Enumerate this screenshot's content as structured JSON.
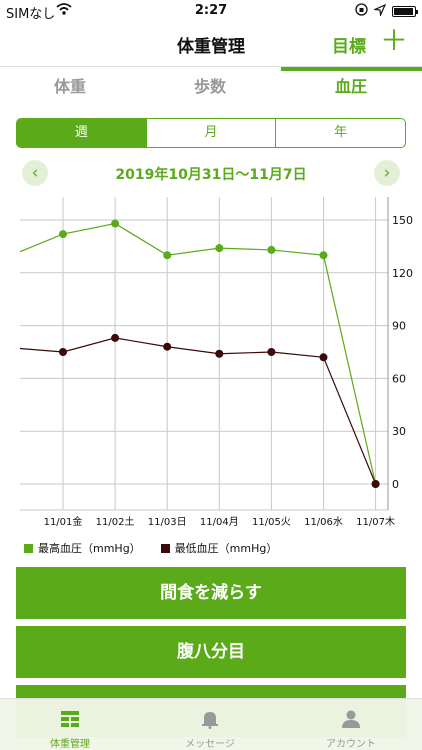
{
  "status": {
    "carrier": "SIMなし",
    "time": "2:27"
  },
  "nav": {
    "title": "体重管理",
    "goal": "目標",
    "add": "＋"
  },
  "tabs": [
    {
      "label": "体重",
      "active": false
    },
    {
      "label": "歩数",
      "active": false
    },
    {
      "label": "血圧",
      "active": true
    }
  ],
  "segments": [
    {
      "label": "週",
      "active": true
    },
    {
      "label": "月",
      "active": false
    },
    {
      "label": "年",
      "active": false
    }
  ],
  "period": {
    "label": "2019年10月31日～11月7日",
    "prev": "‹",
    "next": "›"
  },
  "legend": {
    "systolic": "最高血圧（mmHg）",
    "diastolic": "最低血圧（mmHg）"
  },
  "actions": [
    "間食を減らす",
    "腹八分目",
    ""
  ],
  "bottom_tabs": [
    {
      "label": "体重管理",
      "icon": "list-icon",
      "active": true
    },
    {
      "label": "メッセージ",
      "icon": "bell-icon",
      "active": false
    },
    {
      "label": "アカウント",
      "icon": "user-icon",
      "active": false
    }
  ],
  "colors": {
    "accent": "#5aaa1a",
    "systolic": "#5aaa1a",
    "diastolic": "#3b0a0a"
  },
  "chart_data": {
    "type": "line",
    "categories": [
      "11/01金",
      "11/02土",
      "11/03日",
      "11/04月",
      "11/05火",
      "11/06水",
      "11/07木"
    ],
    "series": [
      {
        "name": "最高血圧（mmHg）",
        "values": [
          142,
          148,
          130,
          134,
          133,
          130,
          0
        ],
        "lead_in": 132
      },
      {
        "name": "最低血圧（mmHg）",
        "values": [
          75,
          83,
          78,
          74,
          75,
          72,
          0
        ],
        "lead_in": 77
      }
    ],
    "yticks": [
      0,
      30,
      60,
      90,
      120,
      150
    ],
    "ylim": [
      -15,
      160
    ],
    "grid": true,
    "legend": "bottom-left"
  }
}
